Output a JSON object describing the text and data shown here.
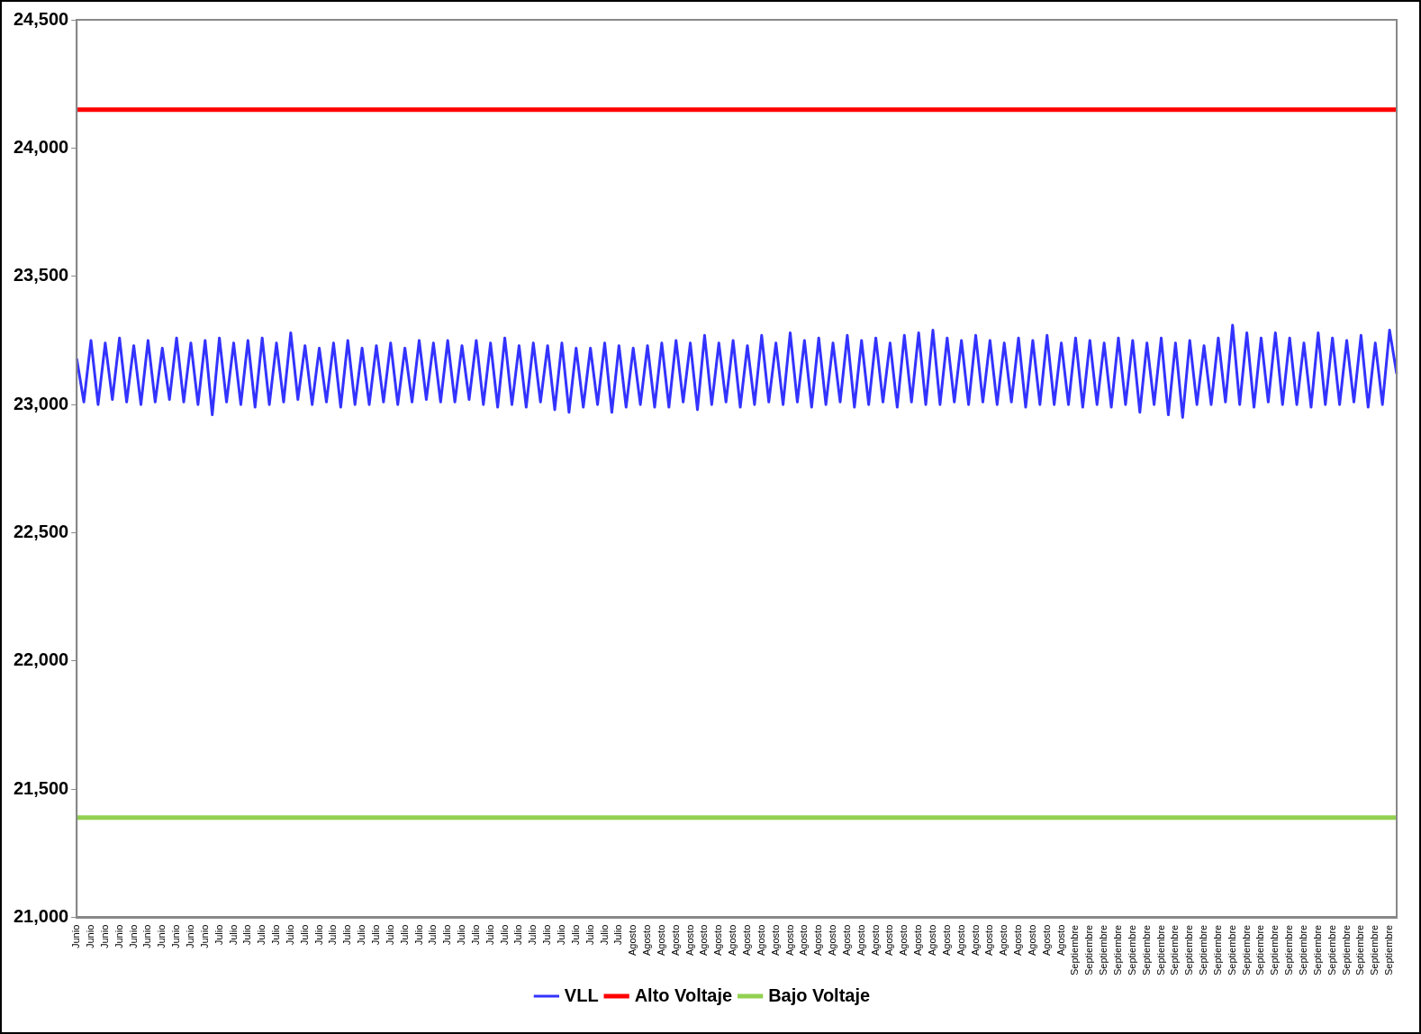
{
  "chart_data": {
    "type": "line",
    "categories": [
      "Junio",
      null,
      "Junio",
      null,
      "Junio",
      null,
      "Junio",
      null,
      "Junio",
      null,
      "Junio",
      null,
      "Junio",
      null,
      "Junio",
      null,
      "Junio",
      null,
      "Junio",
      null,
      "Julio",
      null,
      "Julio",
      null,
      "Julio",
      null,
      "Julio",
      null,
      "Julio",
      null,
      "Julio",
      null,
      "Julio",
      null,
      "Julio",
      null,
      "Julio",
      null,
      "Julio",
      null,
      "Julio",
      null,
      "Julio",
      null,
      "Julio",
      null,
      "Julio",
      null,
      "Julio",
      null,
      "Julio",
      null,
      "Julio",
      null,
      "Julio",
      null,
      "Julio",
      null,
      "Julio",
      null,
      "Julio",
      null,
      "Julio",
      null,
      "Julio",
      null,
      "Julio",
      null,
      "Julio",
      null,
      "Julio",
      null,
      "Julio",
      null,
      "Julio",
      null,
      "Julio",
      null,
      "Agosto",
      null,
      "Agosto",
      null,
      "Agosto",
      null,
      "Agosto",
      null,
      "Agosto",
      null,
      "Agosto",
      null,
      "Agosto",
      null,
      "Agosto",
      null,
      "Agosto",
      null,
      "Agosto",
      null,
      "Agosto",
      null,
      "Agosto",
      null,
      "Agosto",
      null,
      "Agosto",
      null,
      "Agosto",
      null,
      "Agosto",
      null,
      "Agosto",
      null,
      "Agosto",
      null,
      "Agosto",
      null,
      "Agosto",
      null,
      "Agosto",
      null,
      "Agosto",
      null,
      "Agosto",
      null,
      "Agosto",
      null,
      "Agosto",
      null,
      "Agosto",
      null,
      "Agosto",
      null,
      "Agosto",
      null,
      "Agosto",
      null,
      "Agosto",
      null,
      "Agosto",
      null,
      "Septiembre",
      null,
      "Septiembre",
      null,
      "Septiembre",
      null,
      "Septiembre",
      null,
      "Septiembre",
      null,
      "Septiembre",
      null,
      "Septiembre",
      null,
      "Septiembre",
      null,
      "Septiembre",
      null,
      "Septiembre",
      null,
      "Septiembre",
      null,
      "Septiembre",
      null,
      "Septiembre",
      null,
      "Septiembre",
      null,
      "Septiembre",
      null,
      "Septiembre",
      null,
      "Septiembre",
      null,
      "Septiembre",
      null,
      "Septiembre",
      null,
      "Septiembre",
      null,
      "Septiembre",
      null,
      "Septiembre",
      null,
      "Septiembre",
      null
    ],
    "series": [
      {
        "name": "VLL",
        "color": "#3333ff",
        "values": [
          23180,
          23010,
          23250,
          23000,
          23240,
          23020,
          23260,
          23010,
          23230,
          23000,
          23250,
          23010,
          23220,
          23020,
          23260,
          23010,
          23240,
          23000,
          23250,
          22960,
          23260,
          23010,
          23240,
          23000,
          23250,
          22990,
          23260,
          23000,
          23240,
          23010,
          23280,
          23020,
          23230,
          23000,
          23220,
          23010,
          23240,
          22990,
          23250,
          23000,
          23220,
          23000,
          23230,
          23010,
          23240,
          23000,
          23220,
          23010,
          23250,
          23020,
          23240,
          23010,
          23250,
          23010,
          23230,
          23020,
          23250,
          23000,
          23240,
          22990,
          23260,
          23000,
          23230,
          22990,
          23240,
          23010,
          23230,
          22980,
          23240,
          22970,
          23220,
          22990,
          23220,
          23000,
          23240,
          22970,
          23230,
          22990,
          23220,
          23000,
          23230,
          22990,
          23240,
          22990,
          23250,
          23010,
          23240,
          22980,
          23270,
          23000,
          23240,
          23010,
          23250,
          22990,
          23230,
          23000,
          23270,
          23010,
          23240,
          23000,
          23280,
          23010,
          23250,
          22990,
          23260,
          23000,
          23240,
          23010,
          23270,
          22990,
          23250,
          23000,
          23260,
          23010,
          23240,
          22990,
          23270,
          23010,
          23280,
          23000,
          23290,
          23000,
          23260,
          23010,
          23250,
          23000,
          23270,
          23010,
          23250,
          23000,
          23240,
          23010,
          23260,
          22990,
          23250,
          23000,
          23270,
          23000,
          23240,
          23000,
          23260,
          22990,
          23250,
          23000,
          23240,
          22990,
          23260,
          23000,
          23250,
          22970,
          23240,
          23000,
          23260,
          22960,
          23240,
          22950,
          23250,
          23000,
          23230,
          23000,
          23260,
          23010,
          23310,
          23000,
          23280,
          22990,
          23260,
          23010,
          23280,
          23000,
          23260,
          23000,
          23240,
          22990,
          23280,
          23000,
          23260,
          23000,
          23250,
          23010,
          23270,
          22990,
          23240,
          23000,
          23290,
          23120
        ]
      },
      {
        "name": "Alto Voltaje",
        "color": "#ff0000",
        "values": [
          24150,
          24150,
          24150,
          24150,
          24150,
          24150,
          24150,
          24150,
          24150,
          24150,
          24150,
          24150,
          24150,
          24150,
          24150,
          24150,
          24150,
          24150,
          24150,
          24150,
          24150,
          24150,
          24150,
          24150,
          24150,
          24150,
          24150,
          24150,
          24150,
          24150,
          24150,
          24150,
          24150,
          24150,
          24150,
          24150,
          24150,
          24150,
          24150,
          24150,
          24150,
          24150,
          24150,
          24150,
          24150,
          24150,
          24150,
          24150,
          24150,
          24150,
          24150,
          24150,
          24150,
          24150,
          24150,
          24150,
          24150,
          24150,
          24150,
          24150,
          24150,
          24150,
          24150,
          24150,
          24150,
          24150,
          24150,
          24150,
          24150,
          24150,
          24150,
          24150,
          24150,
          24150,
          24150,
          24150,
          24150,
          24150,
          24150,
          24150,
          24150,
          24150,
          24150,
          24150,
          24150,
          24150,
          24150,
          24150,
          24150,
          24150,
          24150,
          24150,
          24150,
          24150,
          24150,
          24150,
          24150,
          24150,
          24150,
          24150,
          24150,
          24150,
          24150,
          24150,
          24150,
          24150,
          24150,
          24150,
          24150,
          24150,
          24150,
          24150,
          24150,
          24150,
          24150,
          24150,
          24150,
          24150,
          24150,
          24150,
          24150,
          24150,
          24150,
          24150,
          24150,
          24150,
          24150,
          24150,
          24150,
          24150,
          24150,
          24150,
          24150,
          24150,
          24150,
          24150,
          24150,
          24150,
          24150,
          24150,
          24150,
          24150,
          24150,
          24150,
          24150,
          24150,
          24150,
          24150,
          24150,
          24150,
          24150,
          24150,
          24150,
          24150,
          24150,
          24150,
          24150,
          24150,
          24150,
          24150,
          24150,
          24150,
          24150,
          24150,
          24150,
          24150,
          24150,
          24150,
          24150,
          24150,
          24150,
          24150,
          24150,
          24150,
          24150,
          24150,
          24150,
          24150,
          24150,
          24150,
          24150,
          24150,
          24150,
          24150,
          24150,
          24150
        ]
      },
      {
        "name": "Bajo Voltaje",
        "color": "#92d050",
        "values": [
          21390,
          21390,
          21390,
          21390,
          21390,
          21390,
          21390,
          21390,
          21390,
          21390,
          21390,
          21390,
          21390,
          21390,
          21390,
          21390,
          21390,
          21390,
          21390,
          21390,
          21390,
          21390,
          21390,
          21390,
          21390,
          21390,
          21390,
          21390,
          21390,
          21390,
          21390,
          21390,
          21390,
          21390,
          21390,
          21390,
          21390,
          21390,
          21390,
          21390,
          21390,
          21390,
          21390,
          21390,
          21390,
          21390,
          21390,
          21390,
          21390,
          21390,
          21390,
          21390,
          21390,
          21390,
          21390,
          21390,
          21390,
          21390,
          21390,
          21390,
          21390,
          21390,
          21390,
          21390,
          21390,
          21390,
          21390,
          21390,
          21390,
          21390,
          21390,
          21390,
          21390,
          21390,
          21390,
          21390,
          21390,
          21390,
          21390,
          21390,
          21390,
          21390,
          21390,
          21390,
          21390,
          21390,
          21390,
          21390,
          21390,
          21390,
          21390,
          21390,
          21390,
          21390,
          21390,
          21390,
          21390,
          21390,
          21390,
          21390,
          21390,
          21390,
          21390,
          21390,
          21390,
          21390,
          21390,
          21390,
          21390,
          21390,
          21390,
          21390,
          21390,
          21390,
          21390,
          21390,
          21390,
          21390,
          21390,
          21390,
          21390,
          21390,
          21390,
          21390,
          21390,
          21390,
          21390,
          21390,
          21390,
          21390,
          21390,
          21390,
          21390,
          21390,
          21390,
          21390,
          21390,
          21390,
          21390,
          21390,
          21390,
          21390,
          21390,
          21390,
          21390,
          21390,
          21390,
          21390,
          21390,
          21390,
          21390,
          21390,
          21390,
          21390,
          21390,
          21390,
          21390,
          21390,
          21390,
          21390,
          21390,
          21390,
          21390,
          21390,
          21390,
          21390,
          21390,
          21390,
          21390,
          21390,
          21390,
          21390,
          21390,
          21390,
          21390,
          21390,
          21390,
          21390,
          21390,
          21390,
          21390,
          21390,
          21390,
          21390,
          21390,
          21390
        ]
      }
    ],
    "ylim": [
      21000,
      24500
    ],
    "yticks": [
      {
        "value": 21000,
        "label": "21,000"
      },
      {
        "value": 21500,
        "label": "21,500"
      },
      {
        "value": 22000,
        "label": "22,000"
      },
      {
        "value": 22500,
        "label": "22,500"
      },
      {
        "value": 23000,
        "label": "23,000"
      },
      {
        "value": 23500,
        "label": "23,500"
      },
      {
        "value": 24000,
        "label": "24,000"
      },
      {
        "value": 24500,
        "label": "24,500"
      }
    ],
    "grid": false,
    "legend": "bottom",
    "marker": "none",
    "line_style": "solid"
  }
}
